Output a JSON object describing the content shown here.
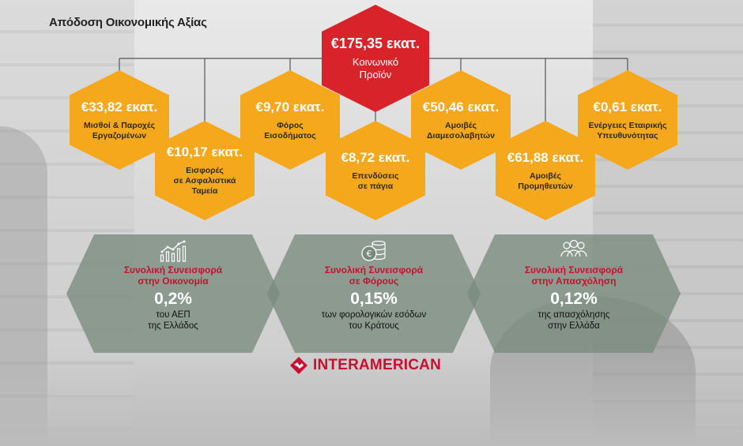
{
  "title": "Απόδοση Οικονομικής Αξίας",
  "colors": {
    "red": "#d9232b",
    "orange": "#f6a81d",
    "grey_hex": "#788a7d",
    "brand": "#c8102e"
  },
  "center": {
    "amount": "€175,35 εκατ.",
    "label_line1": "Κοινωνικό",
    "label_line2": "Προϊόν"
  },
  "items": [
    {
      "amount": "€33,82 εκατ.",
      "line1": "Μισθοί & Παροχές",
      "line2": "Εργαζομένων",
      "line3": ""
    },
    {
      "amount": "€10,17 εκατ.",
      "line1": "Εισφορές",
      "line2": "σε Ασφαλιστικά",
      "line3": "Ταμεία"
    },
    {
      "amount": "€9,70 εκατ.",
      "line1": "Φόρος",
      "line2": "Εισοδήματος",
      "line3": ""
    },
    {
      "amount": "€8,72 εκατ.",
      "line1": "Επενδύσεις",
      "line2": "σε πάγια",
      "line3": ""
    },
    {
      "amount": "€50,46 εκατ.",
      "line1": "Αμοιβές",
      "line2": "Διαμεσολαβητών",
      "line3": ""
    },
    {
      "amount": "€61,88 εκατ.",
      "line1": "Αμοιβές",
      "line2": "Προμηθευτών",
      "line3": ""
    },
    {
      "amount": "€0,61 εκατ.",
      "line1": "Ενέργειες Εταιρικής",
      "line2": "Υπευθυνότητας",
      "line3": ""
    }
  ],
  "contributions": [
    {
      "icon": "bar-chart-icon",
      "head1": "Συνολική Συνεισφορά",
      "head2": "στην Οικονομία",
      "pct": "0,2%",
      "desc1": "του ΑΕΠ",
      "desc2": "της Ελλάδος"
    },
    {
      "icon": "euro-coins-icon",
      "head1": "Συνολική Συνεισφορά",
      "head2": "σε Φόρους",
      "pct": "0,15%",
      "desc1": "των φορολογικών εσόδων",
      "desc2": "του Κράτους"
    },
    {
      "icon": "people-group-icon",
      "head1": "Συνολική Συνεισφορά",
      "head2": "στην Απασχόληση",
      "pct": "0,12%",
      "desc1": "της απασχόλησης",
      "desc2": "στην Ελλάδα"
    }
  ],
  "brand": {
    "name": "INTERAMERICAN",
    "icon": "interamerican-logo-icon"
  }
}
